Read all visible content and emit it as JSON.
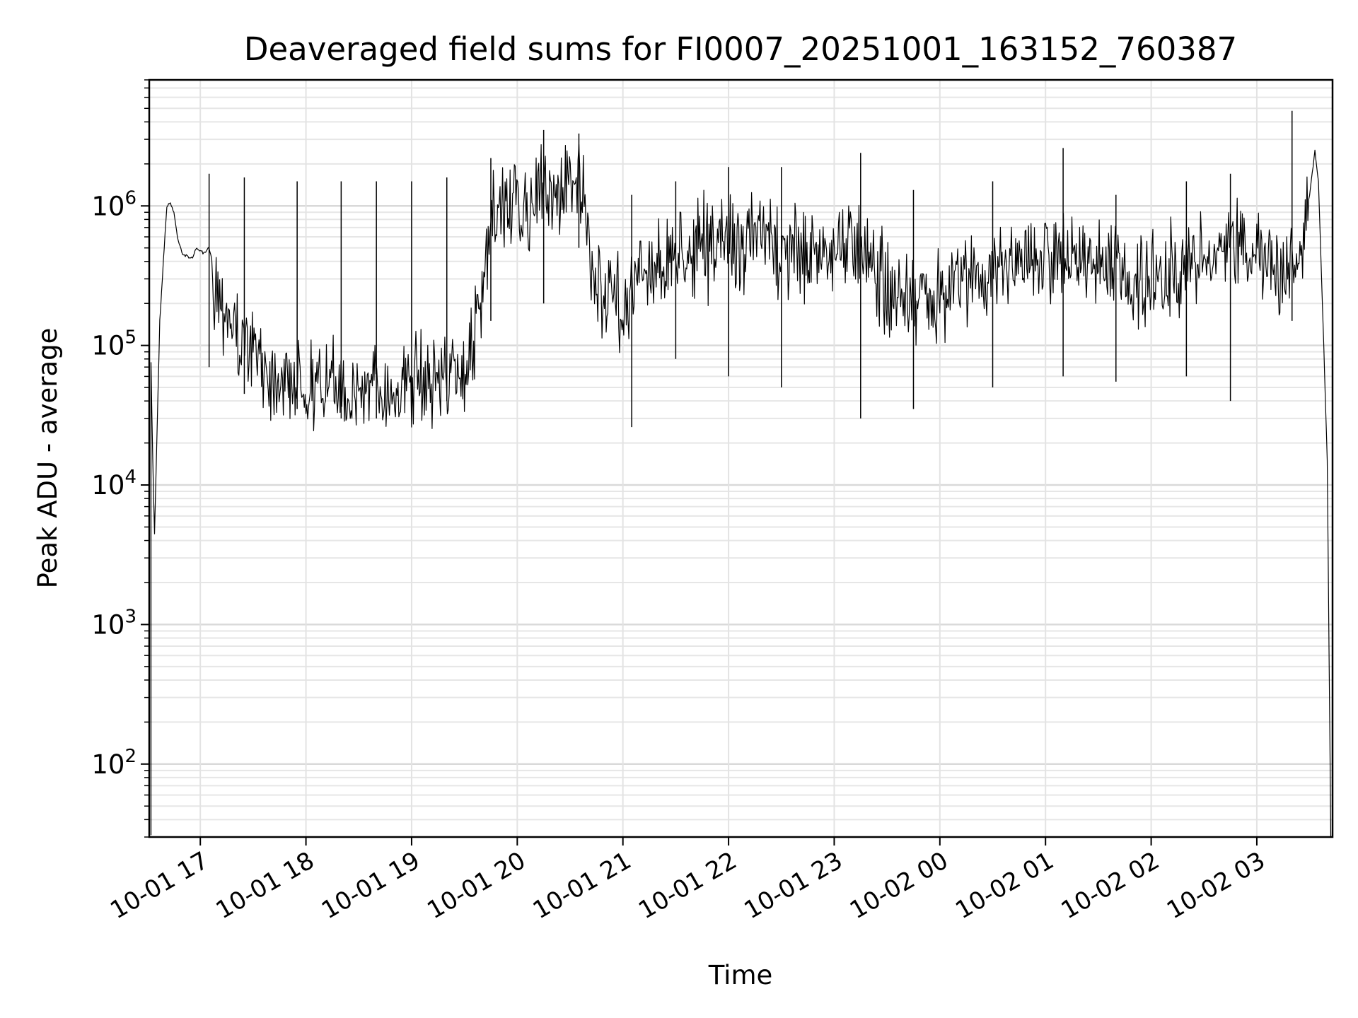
{
  "chart_data": {
    "type": "line",
    "title": "Deaveraged field sums for FI0007_20251001_163152_760387",
    "xlabel": "Time",
    "ylabel": "Peak ADU - average",
    "yscale": "log",
    "ylim": [
      30,
      8000000
    ],
    "xlim": [
      "2025-10-01 16:31",
      "2025-10-02 03:43"
    ],
    "grid": true,
    "xticks": [
      {
        "t": "2025-10-01 17:00",
        "label": "10-01 17"
      },
      {
        "t": "2025-10-01 18:00",
        "label": "10-01 18"
      },
      {
        "t": "2025-10-01 19:00",
        "label": "10-01 19"
      },
      {
        "t": "2025-10-01 20:00",
        "label": "10-01 20"
      },
      {
        "t": "2025-10-01 21:00",
        "label": "10-01 21"
      },
      {
        "t": "2025-10-01 22:00",
        "label": "10-01 22"
      },
      {
        "t": "2025-10-01 23:00",
        "label": "10-01 23"
      },
      {
        "t": "2025-10-02 00:00",
        "label": "10-02 00"
      },
      {
        "t": "2025-10-02 01:00",
        "label": "10-02 01"
      },
      {
        "t": "2025-10-02 02:00",
        "label": "10-02 02"
      },
      {
        "t": "2025-10-02 03:00",
        "label": "10-02 03"
      }
    ],
    "yticks": [
      {
        "value": 100,
        "base": "10",
        "exp": "2"
      },
      {
        "value": 1000,
        "base": "10",
        "exp": "3"
      },
      {
        "value": 10000,
        "base": "10",
        "exp": "4"
      },
      {
        "value": 100000,
        "base": "10",
        "exp": "5"
      },
      {
        "value": 1000000,
        "base": "10",
        "exp": "6"
      }
    ],
    "line_color": "#000000",
    "series": [
      {
        "points": [
          [
            "2025-10-01 16:32",
            30
          ],
          [
            "2025-10-01 16:32",
            75000
          ],
          [
            "2025-10-01 16:33",
            15000
          ],
          [
            "2025-10-01 16:34",
            4500
          ],
          [
            "2025-10-01 16:37",
            150000
          ],
          [
            "2025-10-01 16:39",
            400000
          ],
          [
            "2025-10-01 16:41",
            1000000
          ],
          [
            "2025-10-01 16:43",
            1050000
          ],
          [
            "2025-10-01 16:45",
            900000
          ],
          [
            "2025-10-01 16:47",
            600000
          ],
          [
            "2025-10-01 16:50",
            450000
          ],
          [
            "2025-10-01 16:55",
            420000
          ],
          [
            "2025-10-01 16:58",
            500000
          ],
          [
            "2025-10-01 17:02",
            450000
          ],
          [
            "2025-10-01 17:05",
            500000
          ],
          [
            "2025-10-01 17:10",
            250000
          ],
          [
            "2025-10-01 17:15",
            200000
          ],
          [
            "2025-10-01 17:20",
            120000
          ],
          [
            "2025-10-01 17:30",
            90000
          ],
          [
            "2025-10-01 17:40",
            70000
          ],
          [
            "2025-10-01 17:50",
            60000
          ],
          [
            "2025-10-01 18:00",
            55000
          ],
          [
            "2025-10-01 18:15",
            50000
          ],
          [
            "2025-10-01 18:30",
            50000
          ],
          [
            "2025-10-01 18:45",
            50000
          ],
          [
            "2025-10-01 19:00",
            55000
          ],
          [
            "2025-10-01 19:15",
            60000
          ],
          [
            "2025-10-01 19:30",
            65000
          ],
          [
            "2025-10-01 19:40",
            200000
          ],
          [
            "2025-10-01 19:45",
            700000
          ],
          [
            "2025-10-01 19:55",
            1100000
          ],
          [
            "2025-10-01 20:05",
            900000
          ],
          [
            "2025-10-01 20:15",
            1300000
          ],
          [
            "2025-10-01 20:25",
            1200000
          ],
          [
            "2025-10-01 20:32",
            2000000
          ],
          [
            "2025-10-01 20:37",
            1200000
          ],
          [
            "2025-10-01 20:42",
            300000
          ],
          [
            "2025-10-01 20:50",
            250000
          ],
          [
            "2025-10-01 21:00",
            200000
          ],
          [
            "2025-10-01 21:15",
            350000
          ],
          [
            "2025-10-01 21:30",
            450000
          ],
          [
            "2025-10-01 21:45",
            500000
          ],
          [
            "2025-10-01 22:00",
            550000
          ],
          [
            "2025-10-01 22:15",
            600000
          ],
          [
            "2025-10-01 22:30",
            500000
          ],
          [
            "2025-10-01 22:45",
            450000
          ],
          [
            "2025-10-01 23:00",
            500000
          ],
          [
            "2025-10-01 23:15",
            600000
          ],
          [
            "2025-10-01 23:30",
            250000
          ],
          [
            "2025-10-01 23:45",
            200000
          ],
          [
            "2025-10-02 00:00",
            250000
          ],
          [
            "2025-10-02 00:15",
            300000
          ],
          [
            "2025-10-02 00:30",
            350000
          ],
          [
            "2025-10-02 00:45",
            400000
          ],
          [
            "2025-10-02 01:00",
            450000
          ],
          [
            "2025-10-02 01:15",
            400000
          ],
          [
            "2025-10-02 01:30",
            350000
          ],
          [
            "2025-10-02 01:45",
            300000
          ],
          [
            "2025-10-02 02:00",
            300000
          ],
          [
            "2025-10-02 02:15",
            350000
          ],
          [
            "2025-10-02 02:30",
            400000
          ],
          [
            "2025-10-02 02:45",
            450000
          ],
          [
            "2025-10-02 03:00",
            500000
          ],
          [
            "2025-10-02 03:08",
            450000
          ],
          [
            "2025-10-02 03:15",
            350000
          ],
          [
            "2025-10-02 03:20",
            400000
          ],
          [
            "2025-10-02 03:25",
            600000
          ],
          [
            "2025-10-02 03:30",
            1200000
          ],
          [
            "2025-10-02 03:33",
            2500000
          ],
          [
            "2025-10-02 03:35",
            1500000
          ],
          [
            "2025-10-02 03:38",
            100000
          ],
          [
            "2025-10-02 03:40",
            15000
          ],
          [
            "2025-10-02 03:42",
            30
          ]
        ],
        "spikes": [
          [
            "2025-10-01 17:05",
            70000,
            1700000
          ],
          [
            "2025-10-01 17:25",
            45000,
            1600000
          ],
          [
            "2025-10-01 17:55",
            35000,
            1500000
          ],
          [
            "2025-10-01 18:20",
            30000,
            1500000
          ],
          [
            "2025-10-01 18:40",
            30000,
            1500000
          ],
          [
            "2025-10-01 19:00",
            35000,
            1500000
          ],
          [
            "2025-10-01 19:20",
            40000,
            1600000
          ],
          [
            "2025-10-01 19:45",
            150000,
            2200000
          ],
          [
            "2025-10-01 20:15",
            200000,
            3500000
          ],
          [
            "2025-10-01 20:35",
            500000,
            3300000
          ],
          [
            "2025-10-01 21:05",
            26000,
            1200000
          ],
          [
            "2025-10-01 21:30",
            80000,
            1500000
          ],
          [
            "2025-10-01 22:00",
            60000,
            1900000
          ],
          [
            "2025-10-01 22:30",
            50000,
            1900000
          ],
          [
            "2025-10-01 23:15",
            30000,
            2400000
          ],
          [
            "2025-10-01 23:45",
            35000,
            1300000
          ],
          [
            "2025-10-02 00:30",
            50000,
            1500000
          ],
          [
            "2025-10-02 01:10",
            60000,
            2600000
          ],
          [
            "2025-10-02 01:40",
            55000,
            1200000
          ],
          [
            "2025-10-02 02:20",
            60000,
            1500000
          ],
          [
            "2025-10-02 02:45",
            40000,
            1700000
          ],
          [
            "2025-10-02 03:20",
            150000,
            4800000
          ]
        ]
      }
    ]
  }
}
